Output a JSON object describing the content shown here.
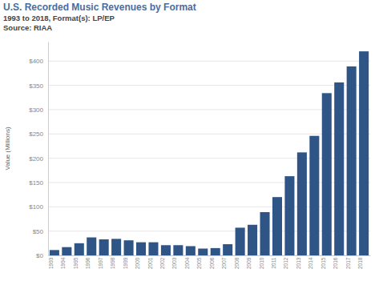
{
  "chart_data": {
    "type": "bar",
    "title": "U.S. Recorded Music Revenues by Format",
    "subtitle": "1993 to 2018, Format(s): LP/EP",
    "source": "Source: RIAA",
    "y_label": "Value (Millions)",
    "categories": [
      "1993",
      "1994",
      "1995",
      "1996",
      "1997",
      "1998",
      "1999",
      "2000",
      "2001",
      "2002",
      "2003",
      "2004",
      "2005",
      "2006",
      "2007",
      "2008",
      "2009",
      "2010",
      "2011",
      "2012",
      "2013",
      "2014",
      "2015",
      "2016",
      "2017",
      "2018"
    ],
    "values": [
      11,
      17,
      25,
      37,
      33,
      34,
      31,
      27,
      27,
      21,
      21,
      19,
      14,
      15,
      23,
      57,
      63,
      89,
      120,
      163,
      212,
      246,
      334,
      356,
      389,
      420
    ],
    "color": "#2e5585",
    "ylim": [
      0,
      440
    ],
    "yticks": [
      {
        "value": 0,
        "label": "$0"
      },
      {
        "value": 50,
        "label": "$50"
      },
      {
        "value": 100,
        "label": "$100"
      },
      {
        "value": 150,
        "label": "$150"
      },
      {
        "value": 200,
        "label": "$200"
      },
      {
        "value": 250,
        "label": "$250"
      },
      {
        "value": 300,
        "label": "$300"
      },
      {
        "value": 350,
        "label": "$350"
      },
      {
        "value": 400,
        "label": "$400"
      }
    ],
    "grid": true
  }
}
